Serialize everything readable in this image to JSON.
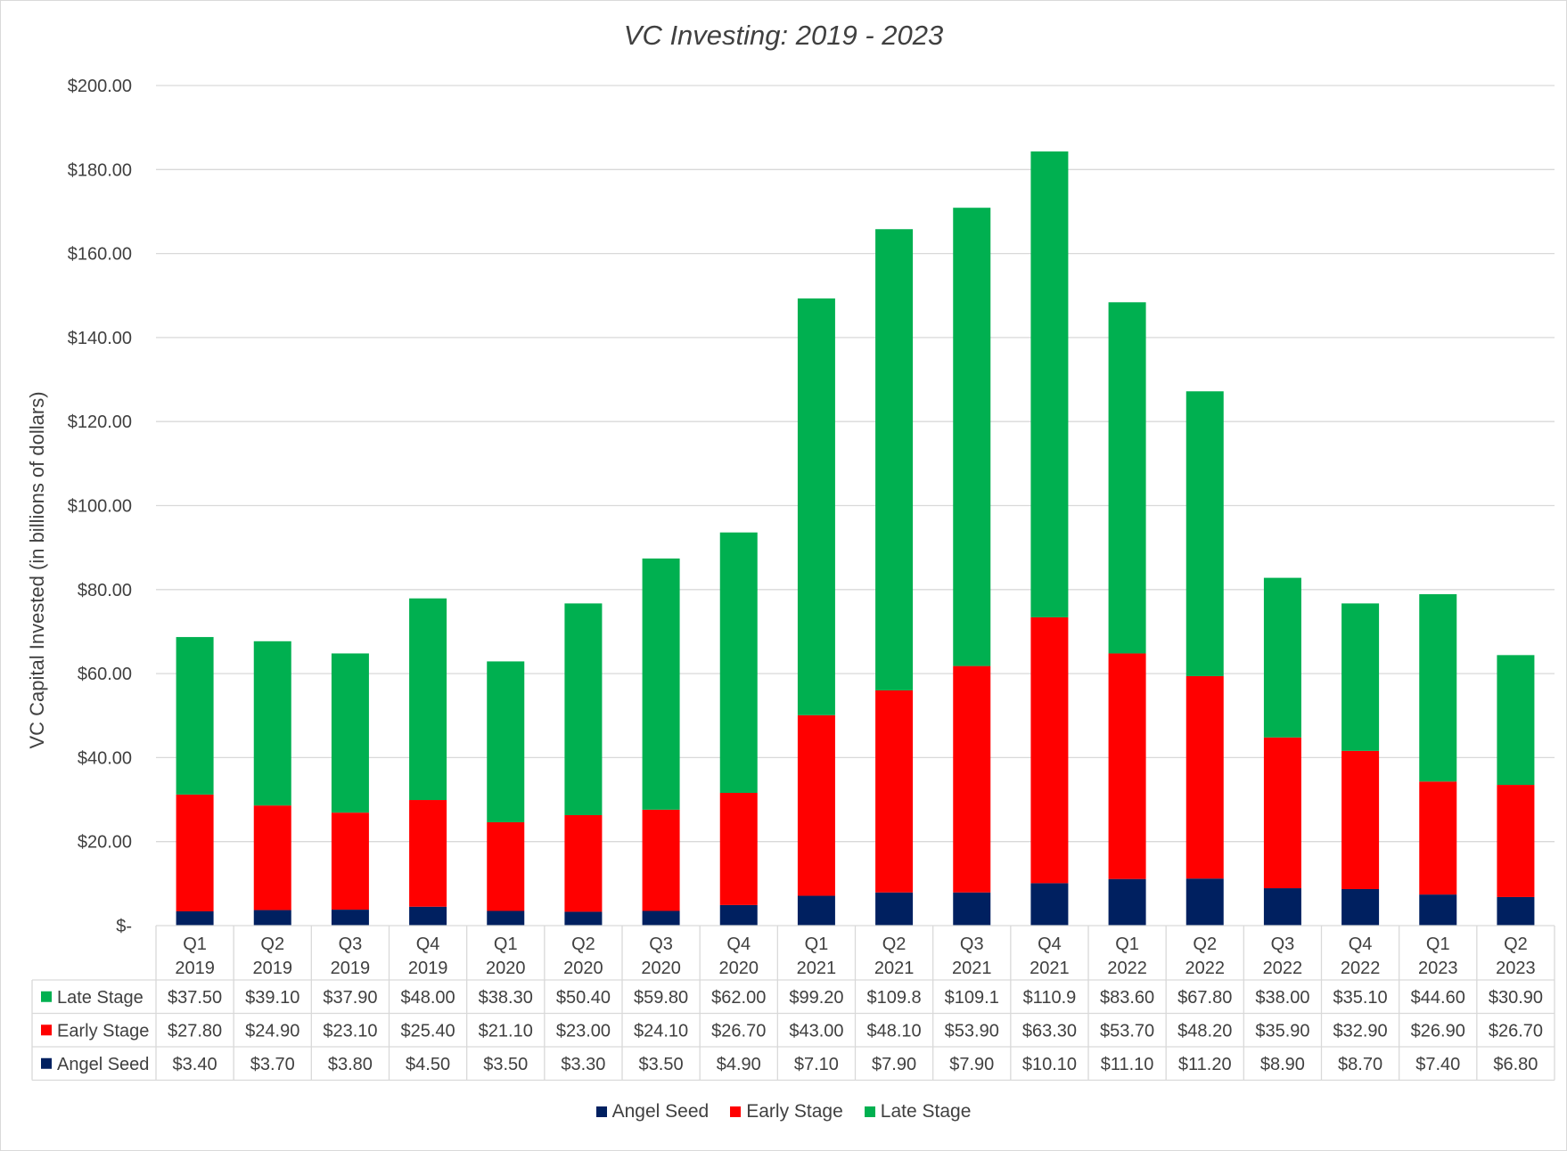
{
  "chart_data": {
    "type": "bar",
    "stacked": true,
    "title": "VC Investing: 2019 - 2023",
    "xlabel": "",
    "ylabel": "VC Capital  Invested (in billions of dollars)",
    "ylim": [
      0,
      200
    ],
    "y_ticks": [
      "$-",
      "$20.00",
      "$40.00",
      "$60.00",
      "$80.00",
      "$100.00",
      "$120.00",
      "$140.00",
      "$160.00",
      "$180.00",
      "$200.00"
    ],
    "grid": true,
    "legend_position": "bottom",
    "categories": [
      [
        "Q1",
        "2019"
      ],
      [
        "Q2",
        "2019"
      ],
      [
        "Q3",
        "2019"
      ],
      [
        "Q4",
        "2019"
      ],
      [
        "Q1",
        "2020"
      ],
      [
        "Q2",
        "2020"
      ],
      [
        "Q3",
        "2020"
      ],
      [
        "Q4",
        "2020"
      ],
      [
        "Q1",
        "2021"
      ],
      [
        "Q2",
        "2021"
      ],
      [
        "Q3",
        "2021"
      ],
      [
        "Q4",
        "2021"
      ],
      [
        "Q1",
        "2022"
      ],
      [
        "Q2",
        "2022"
      ],
      [
        "Q3",
        "2022"
      ],
      [
        "Q4",
        "2022"
      ],
      [
        "Q1",
        "2023"
      ],
      [
        "Q2",
        "2023"
      ]
    ],
    "series": [
      {
        "name": "Angel Seed",
        "color": "#002060",
        "values": [
          3.4,
          3.7,
          3.8,
          4.5,
          3.5,
          3.3,
          3.5,
          4.9,
          7.1,
          7.9,
          7.9,
          10.1,
          11.1,
          11.2,
          8.9,
          8.7,
          7.4,
          6.8
        ],
        "table_labels": [
          "$3.40",
          "$3.70",
          "$3.80",
          "$4.50",
          "$3.50",
          "$3.30",
          "$3.50",
          "$4.90",
          "$7.10",
          "$7.90",
          "$7.90",
          "$10.10",
          "$11.10",
          "$11.20",
          "$8.90",
          "$8.70",
          "$7.40",
          "$6.80"
        ]
      },
      {
        "name": "Early Stage",
        "color": "#ff0000",
        "values": [
          27.8,
          24.9,
          23.1,
          25.4,
          21.1,
          23.0,
          24.1,
          26.7,
          43.0,
          48.1,
          53.9,
          63.3,
          53.7,
          48.2,
          35.9,
          32.9,
          26.9,
          26.7
        ],
        "table_labels": [
          "$27.80",
          "$24.90",
          "$23.10",
          "$25.40",
          "$21.10",
          "$23.00",
          "$24.10",
          "$26.70",
          "$43.00",
          "$48.10",
          "$53.90",
          "$63.30",
          "$53.70",
          "$48.20",
          "$35.90",
          "$32.90",
          "$26.90",
          "$26.70"
        ]
      },
      {
        "name": "Late Stage",
        "color": "#00b050",
        "values": [
          37.5,
          39.1,
          37.9,
          48.0,
          38.3,
          50.4,
          59.8,
          62.0,
          99.2,
          109.8,
          109.1,
          110.9,
          83.6,
          67.8,
          38.0,
          35.1,
          44.6,
          30.9
        ],
        "table_labels": [
          "$37.50",
          "$39.10",
          "$37.90",
          "$48.00",
          "$38.30",
          "$50.40",
          "$59.80",
          "$62.00",
          "$99.20",
          "$109.8",
          "$109.1",
          "$110.9",
          "$83.60",
          "$67.80",
          "$38.00",
          "$35.10",
          "$44.60",
          "$30.90"
        ]
      }
    ],
    "table_row_order": [
      "Late Stage",
      "Early Stage",
      "Angel Seed"
    ],
    "legend_order": [
      "Angel Seed",
      "Early Stage",
      "Late Stage"
    ]
  }
}
